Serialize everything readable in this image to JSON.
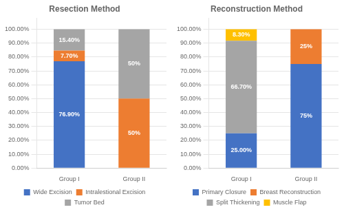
{
  "chart_data": [
    {
      "type": "bar",
      "title": "Resection Method",
      "stacked": true,
      "grid": true,
      "legend": "bottom",
      "data_labels": true,
      "categories": [
        "Group I",
        "Group II"
      ],
      "series": [
        {
          "name": "Wide Excision",
          "color": "#4472C4",
          "values": [
            76.9,
            0.0
          ],
          "value_labels": [
            "76.90%",
            null
          ]
        },
        {
          "name": "Intralestional Excision",
          "color": "#ED7D31",
          "values": [
            7.7,
            50.0
          ],
          "value_labels": [
            "7.70%",
            "50%"
          ]
        },
        {
          "name": "Tumor Bed",
          "color": "#A5A5A5",
          "values": [
            15.4,
            50.0
          ],
          "value_labels": [
            "15.40%",
            "50%"
          ]
        }
      ],
      "ylim": [
        0,
        108
      ],
      "yticks": [
        {
          "value": 0,
          "label": "0.00%"
        },
        {
          "value": 10,
          "label": "10.00%"
        },
        {
          "value": 20,
          "label": "20.00%"
        },
        {
          "value": 30,
          "label": "30.00%"
        },
        {
          "value": 40,
          "label": "40.00%"
        },
        {
          "value": 50,
          "label": "50.00%"
        },
        {
          "value": 60,
          "label": "60.00%"
        },
        {
          "value": 70,
          "label": "70.00%"
        },
        {
          "value": 80,
          "label": "80.00%"
        },
        {
          "value": 90,
          "label": "90.00%"
        },
        {
          "value": 100,
          "label": "100.00%"
        }
      ]
    },
    {
      "type": "bar",
      "title": "Reconstruction Method",
      "stacked": true,
      "grid": true,
      "legend": "bottom",
      "data_labels": true,
      "categories": [
        "Group I",
        "Group II"
      ],
      "series": [
        {
          "name": "Primary Closure",
          "color": "#4472C4",
          "values": [
            25.0,
            75.0
          ],
          "value_labels": [
            "25.00%",
            "75%"
          ]
        },
        {
          "name": "Breast Reconstruction",
          "color": "#ED7D31",
          "values": [
            0.0,
            25.0
          ],
          "value_labels": [
            null,
            "25%"
          ]
        },
        {
          "name": "Split Thickening",
          "color": "#A5A5A5",
          "values": [
            66.7,
            0.0
          ],
          "value_labels": [
            "66.70%",
            null
          ]
        },
        {
          "name": "Muscle Flap",
          "color": "#FFC000",
          "values": [
            8.3,
            0.0
          ],
          "value_labels": [
            "8.30%",
            null
          ]
        }
      ],
      "ylim": [
        0,
        108
      ],
      "yticks": [
        {
          "value": 0,
          "label": "0.00%"
        },
        {
          "value": 10,
          "label": "10.00%"
        },
        {
          "value": 20,
          "label": "20.00%"
        },
        {
          "value": 30,
          "label": "30.00%"
        },
        {
          "value": 40,
          "label": "40.00%"
        },
        {
          "value": 50,
          "label": "50.00%"
        },
        {
          "value": 60,
          "label": "60.00%"
        },
        {
          "value": 70,
          "label": "70.00%"
        },
        {
          "value": 80,
          "label": "80.00%"
        },
        {
          "value": 90,
          "label": "90.00%"
        },
        {
          "value": 100,
          "label": "100.00%"
        }
      ]
    }
  ]
}
